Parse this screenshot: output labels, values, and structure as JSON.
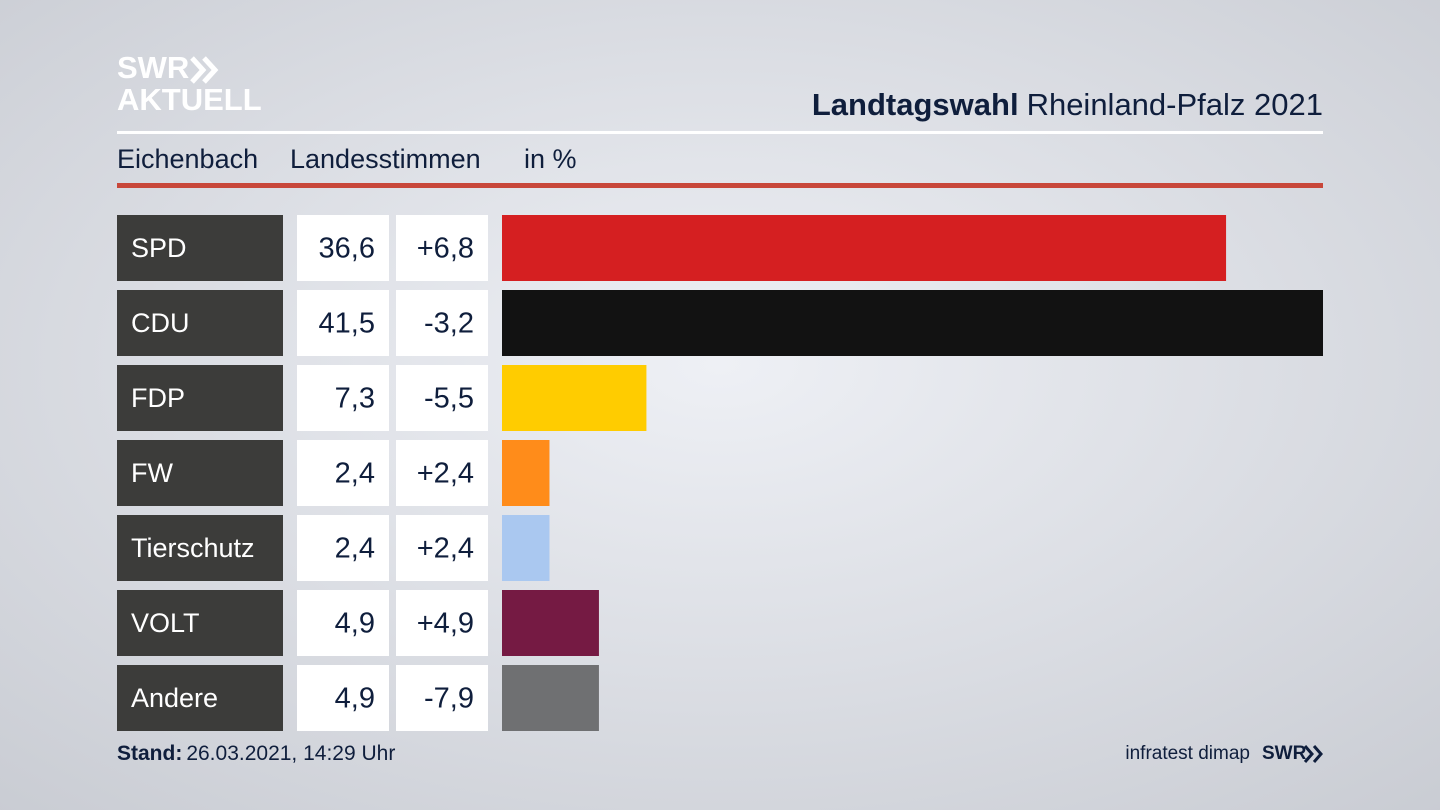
{
  "logo": {
    "line1": "SWR",
    "line2": "AKTUELL"
  },
  "chart_data": {
    "type": "bar",
    "orientation": "horizontal",
    "title_bold": "Landtagswahl",
    "title": "Rheinland-Pfalz 2021",
    "subtitle": [
      "Eichenbach",
      "Landesstimmen",
      "in %"
    ],
    "categories": [
      "SPD",
      "CDU",
      "FDP",
      "FW",
      "Tierschutz",
      "VOLT",
      "Andere"
    ],
    "values": [
      36.6,
      41.5,
      7.3,
      2.4,
      2.4,
      4.9,
      4.9
    ],
    "value_labels": [
      "36,6",
      "41,5",
      "7,3",
      "2,4",
      "2,4",
      "4,9",
      "4,9"
    ],
    "changes": [
      6.8,
      -3.2,
      -5.5,
      2.4,
      2.4,
      4.9,
      -7.9
    ],
    "change_labels": [
      "+6,8",
      "-3,2",
      "-5,5",
      "+2,4",
      "+2,4",
      "+4,9",
      "-7,9"
    ],
    "colors": [
      "#d51f21",
      "#121212",
      "#ffcc00",
      "#ff8c1a",
      "#aac8f0",
      "#751a43",
      "#6f7072"
    ],
    "xlim": [
      0,
      41.5
    ]
  },
  "footer": {
    "label": "Stand:",
    "date": "26.03.2021, 14:29 Uhr",
    "source": "infratest dimap",
    "brand": "SWR"
  }
}
